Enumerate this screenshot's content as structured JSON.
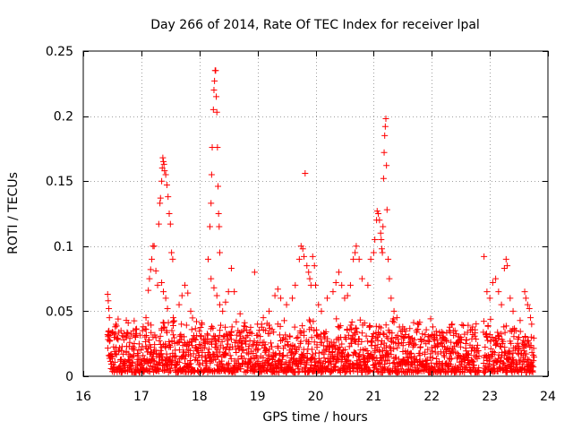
{
  "chart_data": {
    "type": "scatter",
    "title": "Day 266 of 2014, Rate Of TEC Index for receiver lpal",
    "xlabel": "GPS time / hours",
    "ylabel": "ROTI / TECUs",
    "xlim": [
      16,
      24
    ],
    "ylim": [
      0,
      0.25
    ],
    "x_ticks": [
      16,
      17,
      18,
      19,
      20,
      21,
      22,
      23,
      24
    ],
    "x_tick_labels": [
      "16",
      "17",
      "18",
      "19",
      "20",
      "21",
      "22",
      "23",
      "24"
    ],
    "y_ticks": [
      0,
      0.05,
      0.1,
      0.15,
      0.2,
      0.25
    ],
    "y_tick_labels": [
      "0",
      "0.05",
      "0.1",
      "0.15",
      "0.2",
      "0.25"
    ],
    "grid": true,
    "marker": "+",
    "marker_color": "#ff0000",
    "series": [
      {
        "name": "ROTI",
        "points": [
          [
            16.42,
            0.063
          ],
          [
            16.43,
            0.058
          ],
          [
            16.44,
            0.052
          ],
          [
            16.45,
            0.045
          ],
          [
            16.5,
            0.034
          ],
          [
            16.55,
            0.038
          ],
          [
            16.6,
            0.044
          ],
          [
            16.65,
            0.035
          ],
          [
            16.7,
            0.028
          ],
          [
            16.8,
            0.026
          ],
          [
            16.9,
            0.03
          ],
          [
            17.02,
            0.035
          ],
          [
            17.08,
            0.045
          ],
          [
            17.12,
            0.066
          ],
          [
            17.14,
            0.075
          ],
          [
            17.16,
            0.082
          ],
          [
            17.18,
            0.09
          ],
          [
            17.2,
            0.1
          ],
          [
            17.22,
            0.1
          ],
          [
            17.25,
            0.081
          ],
          [
            17.28,
            0.07
          ],
          [
            17.3,
            0.117
          ],
          [
            17.32,
            0.133
          ],
          [
            17.33,
            0.137
          ],
          [
            17.35,
            0.15
          ],
          [
            17.36,
            0.16
          ],
          [
            17.37,
            0.168
          ],
          [
            17.38,
            0.165
          ],
          [
            17.39,
            0.163
          ],
          [
            17.4,
            0.158
          ],
          [
            17.42,
            0.155
          ],
          [
            17.44,
            0.147
          ],
          [
            17.46,
            0.138
          ],
          [
            17.48,
            0.125
          ],
          [
            17.5,
            0.117
          ],
          [
            17.52,
            0.095
          ],
          [
            17.54,
            0.09
          ],
          [
            17.35,
            0.072
          ],
          [
            17.38,
            0.065
          ],
          [
            17.42,
            0.06
          ],
          [
            17.45,
            0.052
          ],
          [
            17.55,
            0.045
          ],
          [
            17.65,
            0.055
          ],
          [
            17.7,
            0.062
          ],
          [
            17.75,
            0.07
          ],
          [
            17.8,
            0.064
          ],
          [
            17.85,
            0.05
          ],
          [
            17.95,
            0.042
          ],
          [
            18.15,
            0.09
          ],
          [
            18.18,
            0.115
          ],
          [
            18.2,
            0.133
          ],
          [
            18.21,
            0.155
          ],
          [
            18.22,
            0.176
          ],
          [
            18.24,
            0.205
          ],
          [
            18.25,
            0.22
          ],
          [
            18.26,
            0.227
          ],
          [
            18.27,
            0.235
          ],
          [
            18.28,
            0.235
          ],
          [
            18.29,
            0.215
          ],
          [
            18.3,
            0.203
          ],
          [
            18.31,
            0.176
          ],
          [
            18.32,
            0.146
          ],
          [
            18.33,
            0.125
          ],
          [
            18.34,
            0.115
          ],
          [
            18.35,
            0.095
          ],
          [
            18.2,
            0.075
          ],
          [
            18.25,
            0.068
          ],
          [
            18.3,
            0.062
          ],
          [
            18.35,
            0.055
          ],
          [
            18.4,
            0.05
          ],
          [
            18.45,
            0.057
          ],
          [
            18.5,
            0.065
          ],
          [
            18.55,
            0.083
          ],
          [
            18.6,
            0.065
          ],
          [
            18.7,
            0.048
          ],
          [
            18.95,
            0.08
          ],
          [
            19.0,
            0.04
          ],
          [
            19.1,
            0.045
          ],
          [
            19.2,
            0.05
          ],
          [
            19.3,
            0.062
          ],
          [
            19.35,
            0.067
          ],
          [
            19.4,
            0.06
          ],
          [
            19.5,
            0.055
          ],
          [
            19.6,
            0.06
          ],
          [
            19.65,
            0.07
          ],
          [
            19.72,
            0.09
          ],
          [
            19.75,
            0.1
          ],
          [
            19.78,
            0.098
          ],
          [
            19.8,
            0.092
          ],
          [
            19.82,
            0.156
          ],
          [
            19.85,
            0.085
          ],
          [
            19.88,
            0.08
          ],
          [
            19.9,
            0.075
          ],
          [
            19.92,
            0.07
          ],
          [
            19.95,
            0.092
          ],
          [
            19.98,
            0.085
          ],
          [
            20.0,
            0.07
          ],
          [
            20.05,
            0.055
          ],
          [
            20.1,
            0.05
          ],
          [
            20.2,
            0.06
          ],
          [
            20.3,
            0.065
          ],
          [
            20.35,
            0.072
          ],
          [
            20.4,
            0.08
          ],
          [
            20.45,
            0.07
          ],
          [
            20.5,
            0.06
          ],
          [
            20.55,
            0.062
          ],
          [
            20.6,
            0.07
          ],
          [
            20.65,
            0.09
          ],
          [
            20.68,
            0.095
          ],
          [
            20.7,
            0.1
          ],
          [
            20.75,
            0.09
          ],
          [
            20.8,
            0.075
          ],
          [
            20.9,
            0.07
          ],
          [
            20.95,
            0.09
          ],
          [
            21.0,
            0.095
          ],
          [
            21.02,
            0.105
          ],
          [
            21.05,
            0.12
          ],
          [
            21.06,
            0.127
          ],
          [
            21.08,
            0.125
          ],
          [
            21.1,
            0.12
          ],
          [
            21.12,
            0.11
          ],
          [
            21.13,
            0.105
          ],
          [
            21.14,
            0.098
          ],
          [
            21.15,
            0.095
          ],
          [
            21.16,
            0.115
          ],
          [
            21.17,
            0.152
          ],
          [
            21.18,
            0.172
          ],
          [
            21.19,
            0.185
          ],
          [
            21.2,
            0.192
          ],
          [
            21.21,
            0.198
          ],
          [
            21.22,
            0.162
          ],
          [
            21.23,
            0.128
          ],
          [
            21.25,
            0.09
          ],
          [
            21.27,
            0.075
          ],
          [
            21.3,
            0.06
          ],
          [
            21.35,
            0.05
          ],
          [
            21.4,
            0.045
          ],
          [
            21.5,
            0.038
          ],
          [
            21.6,
            0.03
          ],
          [
            21.7,
            0.028
          ],
          [
            21.8,
            0.022
          ],
          [
            21.9,
            0.025
          ],
          [
            22.0,
            0.022
          ],
          [
            22.1,
            0.025
          ],
          [
            22.2,
            0.03
          ],
          [
            22.3,
            0.035
          ],
          [
            22.35,
            0.04
          ],
          [
            22.4,
            0.035
          ],
          [
            22.5,
            0.03
          ],
          [
            22.6,
            0.028
          ],
          [
            22.7,
            0.022
          ],
          [
            22.75,
            0.02
          ],
          [
            22.9,
            0.092
          ],
          [
            22.95,
            0.065
          ],
          [
            23.0,
            0.06
          ],
          [
            23.05,
            0.072
          ],
          [
            23.1,
            0.075
          ],
          [
            23.15,
            0.065
          ],
          [
            23.2,
            0.055
          ],
          [
            23.25,
            0.083
          ],
          [
            23.28,
            0.09
          ],
          [
            23.3,
            0.085
          ],
          [
            23.35,
            0.06
          ],
          [
            23.4,
            0.05
          ],
          [
            23.45,
            0.035
          ],
          [
            23.5,
            0.03
          ],
          [
            23.6,
            0.065
          ],
          [
            23.62,
            0.06
          ],
          [
            23.65,
            0.055
          ],
          [
            23.68,
            0.052
          ],
          [
            23.7,
            0.045
          ],
          [
            23.72,
            0.04
          ],
          [
            23.75,
            0.012
          ]
        ],
        "dense_band": {
          "x_from": 16.42,
          "x_to": 23.76,
          "y_from": 0.003,
          "y_to": 0.03,
          "gaps": [
            [
              22.82,
              22.88
            ]
          ]
        }
      }
    ]
  }
}
